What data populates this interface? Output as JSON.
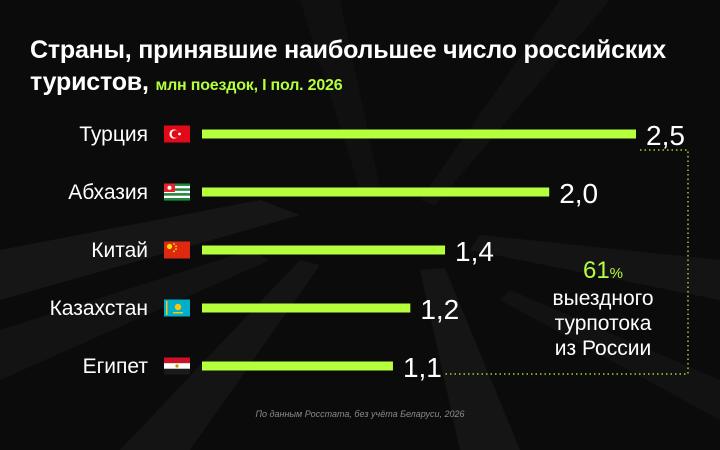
{
  "header": {
    "title_main": "Страны, принявшие наибольшее число российских туристов,",
    "title_units": "млн поездок, I пол. 2026"
  },
  "chart_data": {
    "type": "bar",
    "orientation": "horizontal",
    "categories": [
      "Турция",
      "Абхазия",
      "Китай",
      "Казахстан",
      "Египет"
    ],
    "values": [
      2.5,
      2.0,
      1.4,
      1.2,
      1.1
    ],
    "value_labels": [
      "2,5",
      "2,0",
      "1,4",
      "1,2",
      "1,1"
    ],
    "flags": [
      "turkey-flag",
      "abkhazia-flag",
      "china-flag",
      "kazakhstan-flag",
      "egypt-flag"
    ],
    "title": "Страны, принявшие наибольшее число российских туристов, млн поездок, I пол. 2026",
    "xlim": [
      0,
      2.5
    ],
    "bar_color": "#b5ff3c"
  },
  "callout": {
    "percent": "61",
    "percent_sign": "%",
    "line1": "выездного",
    "line2": "турпотока",
    "line3": "из России"
  },
  "footer": {
    "source": "По данным Росстата, без учёта Беларуси, 2026"
  },
  "colors": {
    "background": "#0b0b0b",
    "accent": "#b5ff3c",
    "text": "#ffffff"
  }
}
